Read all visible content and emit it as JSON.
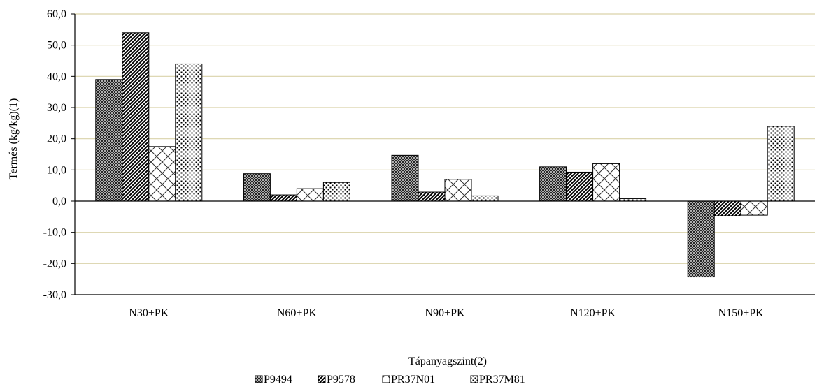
{
  "chart_data": {
    "type": "bar",
    "xlabel": "Tápanyagszint(2)",
    "ylabel": "Termés (kg/kg)(1)",
    "ylim": [
      -30,
      60
    ],
    "yticks": [
      60,
      50,
      40,
      30,
      20,
      10,
      0,
      -10,
      -20,
      -30
    ],
    "ytick_labels": [
      "60,0",
      "50,0",
      "40,0",
      "30,0",
      "20,0",
      "10,0",
      "0,0",
      "-10,0",
      "-20,0",
      "-30,0"
    ],
    "grid": true,
    "legend_position": "bottom",
    "categories": [
      "N30+PK",
      "N60+PK",
      "N90+PK",
      "N120+PK",
      "N150+PK"
    ],
    "series": [
      {
        "name": "P9494",
        "values": [
          39.0,
          8.8,
          14.7,
          11.0,
          -24.3
        ],
        "pattern": "crosshatch-fine"
      },
      {
        "name": "P9578",
        "values": [
          54.0,
          2.0,
          2.9,
          9.3,
          -4.7
        ],
        "pattern": "diagonal-dense"
      },
      {
        "name": "PR37N01",
        "values": [
          17.5,
          4.0,
          7.0,
          12.0,
          -4.5
        ],
        "pattern": "diagonal-cross-sparse"
      },
      {
        "name": "PR37M81",
        "values": [
          44.0,
          6.0,
          1.7,
          0.8,
          24.0
        ],
        "pattern": "dots"
      }
    ],
    "colors": {
      "grid": "#d9d2a9",
      "axis": "#000000",
      "bar_edge": "#000000"
    }
  }
}
